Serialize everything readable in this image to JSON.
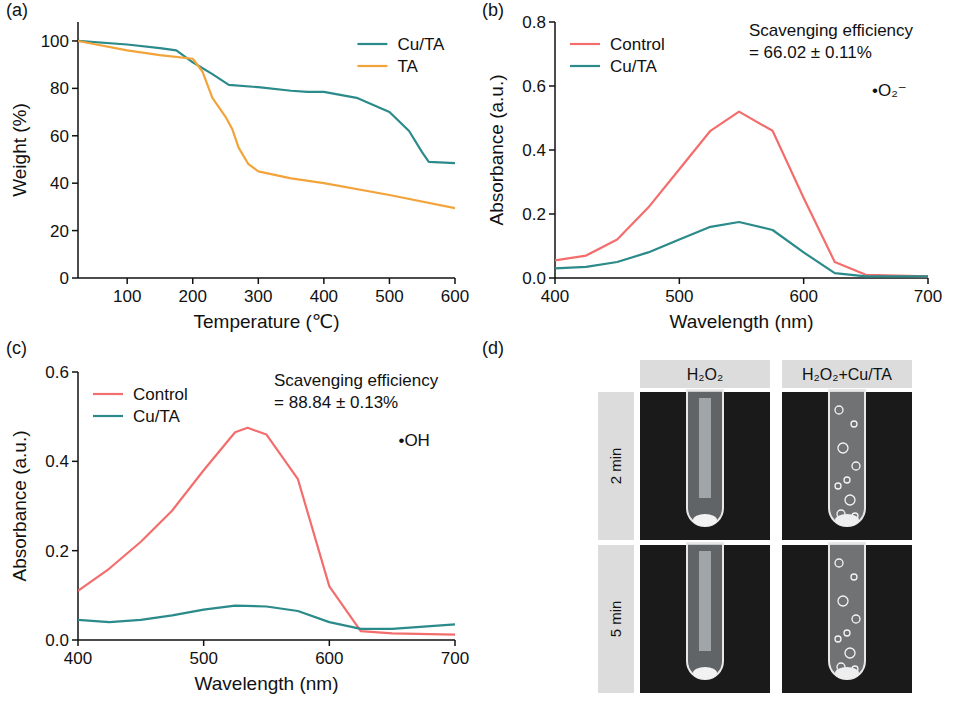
{
  "chart_data": [
    {
      "type": "line",
      "title": "(a)",
      "x_label": "Temperature (℃)",
      "y_label": "Weight (%)",
      "xlim": [
        25,
        600
      ],
      "xticks": [
        100,
        200,
        300,
        400,
        500,
        600
      ],
      "ylim": [
        0,
        108
      ],
      "yticks": [
        0,
        20,
        40,
        60,
        80,
        100
      ],
      "grid": false,
      "legend": "upper right",
      "series": [
        {
          "name": "Cu/TA",
          "color": "#2b8a8a",
          "line_style": "solid",
          "x": [
            25,
            100,
            150,
            175,
            200,
            230,
            255,
            300,
            350,
            375,
            400,
            450,
            500,
            530,
            550,
            560,
            600
          ],
          "values": [
            100,
            98.5,
            97,
            96,
            91,
            86,
            81.5,
            80.5,
            79,
            78.5,
            78.5,
            76,
            70,
            62,
            53,
            49,
            48.5
          ]
        },
        {
          "name": "TA",
          "color": "#f2a33a",
          "line_style": "solid",
          "x": [
            25,
            100,
            150,
            200,
            215,
            230,
            250,
            260,
            270,
            285,
            300,
            350,
            400,
            500,
            600
          ],
          "values": [
            100,
            96,
            94,
            92.5,
            87,
            76,
            68,
            63,
            55,
            48,
            45,
            42,
            40,
            35,
            29.5
          ]
        }
      ]
    },
    {
      "type": "line",
      "title": "(b)",
      "x_label": "Wavelength (nm)",
      "y_label": "Absorbance (a.u.)",
      "xlim": [
        400,
        700
      ],
      "xticks": [
        400,
        500,
        600,
        700
      ],
      "ylim": [
        0,
        0.8
      ],
      "yticks": [
        {
          "value": 0,
          "label": "0.0"
        },
        0.2,
        0.4,
        0.6,
        0.8
      ],
      "grid": false,
      "legend": "upper left",
      "annotations": [
        "Scavenging efficiency",
        "= 66.02 ± 0.11%",
        "•O₂⁻"
      ],
      "series": [
        {
          "name": "Control",
          "color": "#f46d6d",
          "line_style": "solid",
          "x": [
            400,
            425,
            450,
            475,
            500,
            525,
            548,
            575,
            600,
            625,
            650,
            700
          ],
          "values": [
            0.055,
            0.07,
            0.12,
            0.22,
            0.34,
            0.46,
            0.52,
            0.46,
            0.25,
            0.05,
            0.01,
            0.005
          ]
        },
        {
          "name": "Cu/TA",
          "color": "#2b8a8a",
          "line_style": "solid",
          "x": [
            400,
            425,
            450,
            475,
            500,
            525,
            548,
            575,
            600,
            625,
            650,
            700
          ],
          "values": [
            0.03,
            0.035,
            0.05,
            0.08,
            0.12,
            0.16,
            0.175,
            0.15,
            0.08,
            0.015,
            0.005,
            0.005
          ]
        }
      ]
    },
    {
      "type": "line",
      "title": "(c)",
      "x_label": "Wavelength (nm)",
      "y_label": "Absorbance (a.u.)",
      "xlim": [
        400,
        700
      ],
      "xticks": [
        400,
        500,
        600,
        700
      ],
      "ylim": [
        0,
        0.6
      ],
      "yticks": [
        {
          "value": 0,
          "label": "0.0"
        },
        0.2,
        0.4,
        0.6
      ],
      "grid": false,
      "legend": "upper left",
      "annotations": [
        "Scavenging efficiency",
        "= 88.84 ± 0.13%",
        "•OH"
      ],
      "series": [
        {
          "name": "Control",
          "color": "#f46d6d",
          "line_style": "solid",
          "x": [
            400,
            425,
            450,
            475,
            500,
            525,
            535,
            550,
            575,
            600,
            625,
            650,
            700
          ],
          "values": [
            0.11,
            0.16,
            0.22,
            0.29,
            0.38,
            0.465,
            0.475,
            0.46,
            0.36,
            0.12,
            0.02,
            0.015,
            0.012
          ]
        },
        {
          "name": "Cu/TA",
          "color": "#2b8a8a",
          "line_style": "solid",
          "x": [
            400,
            425,
            450,
            475,
            500,
            525,
            550,
            575,
            600,
            625,
            650,
            675,
            700
          ],
          "values": [
            0.045,
            0.04,
            0.045,
            0.055,
            0.068,
            0.077,
            0.075,
            0.065,
            0.04,
            0.025,
            0.025,
            0.03,
            0.035
          ]
        }
      ]
    }
  ],
  "photo": {
    "title": "(d)",
    "columns": [
      "H₂O₂",
      "H₂O₂+Cu/TA"
    ],
    "rows": [
      "2 min",
      "5 min"
    ]
  }
}
